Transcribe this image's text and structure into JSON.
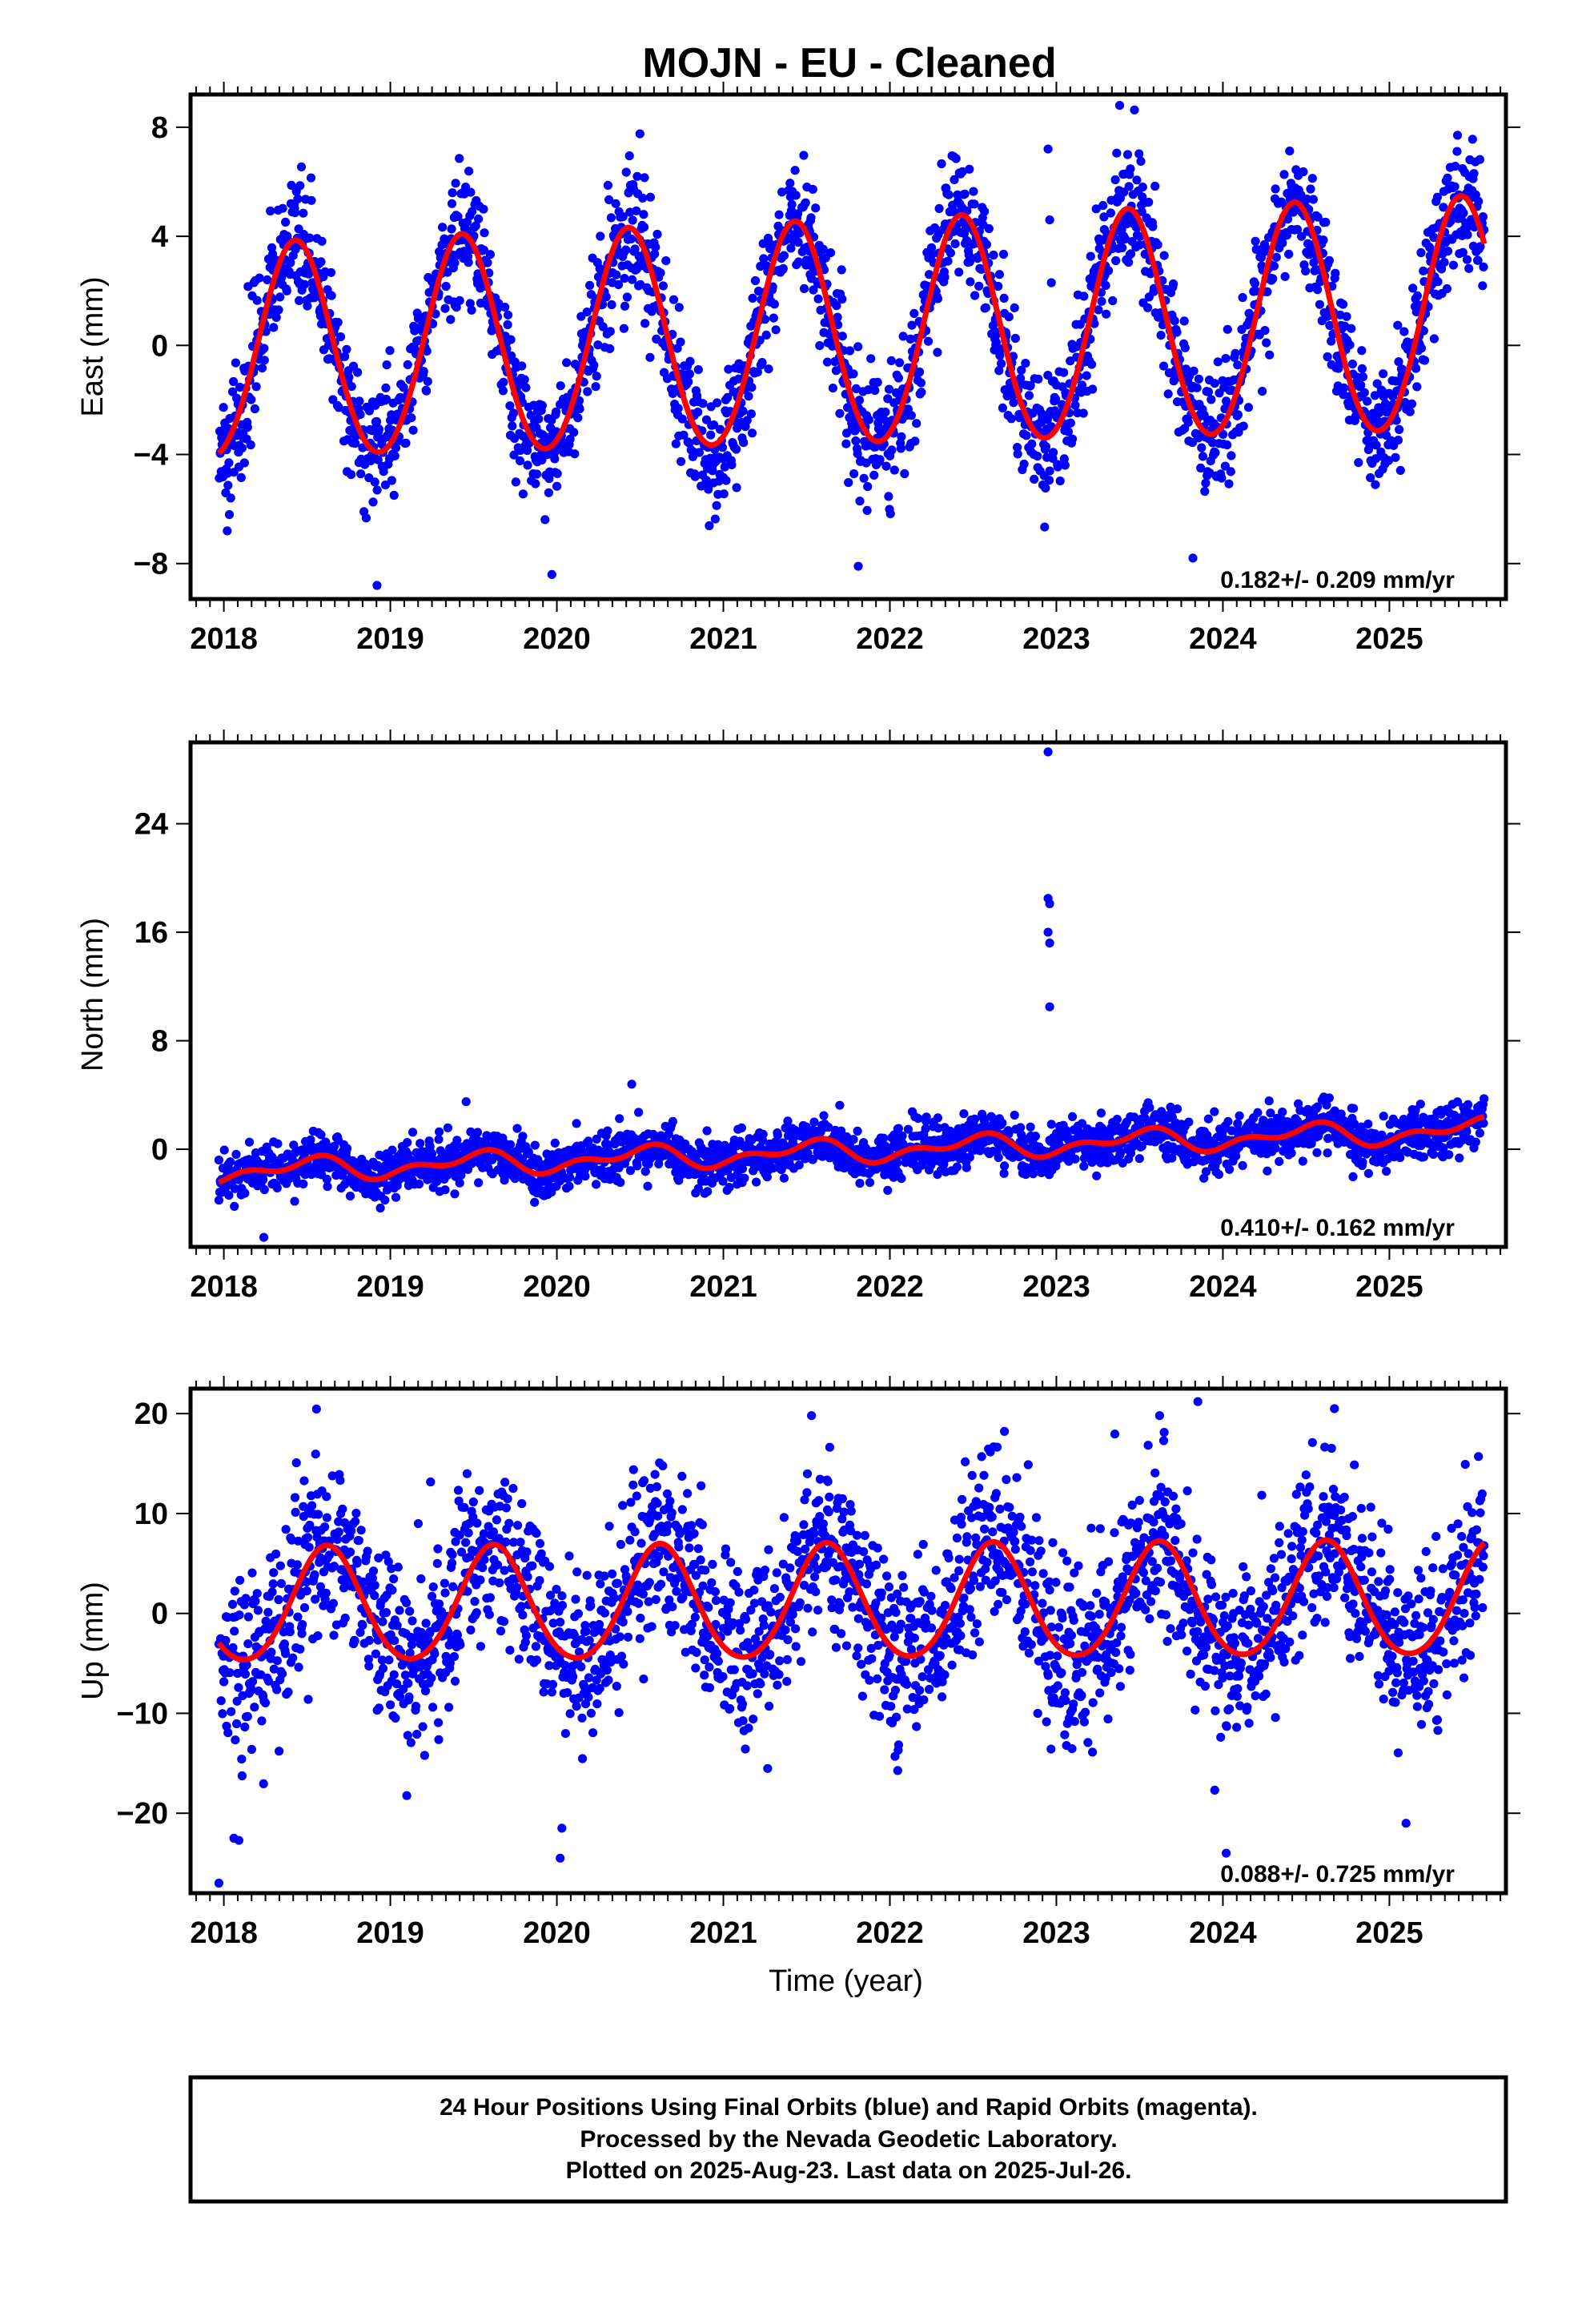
{
  "chart_data": {
    "title": "MOJN  - EU - Cleaned",
    "colors": {
      "points": "#0000ff",
      "model": "#ff0000",
      "frame": "#000000"
    },
    "footer_lines": [
      "24 Hour Positions Using Final Orbits (blue) and Rapid Orbits (magenta).",
      "Processed by the Nevada Geodetic Laboratory.",
      "Plotted on 2025-Aug-23. Last data on 2025-Jul-26."
    ],
    "panels": [
      {
        "type": "scatter",
        "component": "east",
        "ylabel": "East (mm)",
        "xlabel": "",
        "xlim": [
          2017.8,
          2025.7
        ],
        "ylim": [
          -9.3,
          9.2
        ],
        "yticks": [
          8,
          4,
          0,
          -4,
          -8
        ],
        "ytick_labels": [
          "8",
          "4",
          "0",
          "−4",
          "−8"
        ],
        "xticks": [
          2018,
          2019,
          2020,
          2021,
          2022,
          2023,
          2024,
          2025
        ],
        "xtick_labels": [
          "2018",
          "2019",
          "2020",
          "2021",
          "2022",
          "2023",
          "2024",
          "2025"
        ],
        "rate_text": "0.182+/- 0.209 mm/yr",
        "data_range": [
          2017.97,
          2025.57
        ],
        "model": {
          "offset": 0.35,
          "trend": 0.182,
          "ref_year": 2021.8,
          "annual_amp": 3.9,
          "annual_peak": 2018.43,
          "amp_trend": 0.05,
          "semi_amp": 0.2,
          "semi_peak": 2018.43
        },
        "scatter_sd": 1.15,
        "outliers": [
          {
            "x": 2022.95,
            "y": 7.2
          },
          {
            "x": 2022.96,
            "y": 4.6
          },
          {
            "x": 2022.97,
            "y": 2.3
          },
          {
            "x": 2023.38,
            "y": 8.8
          },
          {
            "x": 2018.92,
            "y": -8.8
          },
          {
            "x": 2019.97,
            "y": -8.4
          },
          {
            "x": 2021.81,
            "y": -8.1
          },
          {
            "x": 2023.82,
            "y": -7.8
          },
          {
            "x": 2018.02,
            "y": -6.8
          }
        ]
      },
      {
        "type": "scatter",
        "component": "north",
        "ylabel": "North (mm)",
        "xlabel": "",
        "xlim": [
          2017.8,
          2025.7
        ],
        "ylim": [
          -7.2,
          30.0
        ],
        "yticks": [
          24,
          16,
          8,
          0
        ],
        "ytick_labels": [
          "24",
          "16",
          "8",
          "0"
        ],
        "xticks": [
          2018,
          2019,
          2020,
          2021,
          2022,
          2023,
          2024,
          2025
        ],
        "xtick_labels": [
          "2018",
          "2019",
          "2020",
          "2021",
          "2022",
          "2023",
          "2024",
          "2025"
        ],
        "rate_text": "0.410+/- 0.162 mm/yr",
        "data_range": [
          2017.97,
          2025.57
        ],
        "model": {
          "offset": -0.1,
          "trend": 0.41,
          "ref_year": 2021.8,
          "annual_amp": 0.65,
          "annual_peak": 2018.5,
          "amp_trend": 0.0,
          "semi_amp": 0.45,
          "semi_peak": 2018.62
        },
        "scatter_sd": 0.95,
        "outliers": [
          {
            "x": 2022.95,
            "y": 29.3
          },
          {
            "x": 2022.95,
            "y": 18.5
          },
          {
            "x": 2022.96,
            "y": 18.1
          },
          {
            "x": 2022.95,
            "y": 16.0
          },
          {
            "x": 2022.96,
            "y": 15.2
          },
          {
            "x": 2022.96,
            "y": 10.5
          },
          {
            "x": 2020.45,
            "y": 4.8
          },
          {
            "x": 2017.97,
            "y": -0.8
          },
          {
            "x": 2018.24,
            "y": -6.5
          }
        ]
      },
      {
        "type": "scatter",
        "component": "up",
        "ylabel": "Up (mm)",
        "xlabel": "Time (year)",
        "xlim": [
          2017.8,
          2025.7
        ],
        "ylim": [
          -28.0,
          22.5
        ],
        "yticks": [
          20,
          10,
          0,
          -10,
          -20
        ],
        "ytick_labels": [
          "20",
          "10",
          "0",
          "−10",
          "−20"
        ],
        "xticks": [
          2018,
          2019,
          2020,
          2021,
          2022,
          2023,
          2024,
          2025
        ],
        "xtick_labels": [
          "2018",
          "2019",
          "2020",
          "2021",
          "2022",
          "2023",
          "2024",
          "2025"
        ],
        "rate_text": "0.088+/- 0.725 mm/yr",
        "data_range": [
          2017.97,
          2025.57
        ],
        "model": {
          "offset": 0.9,
          "trend": 0.088,
          "ref_year": 2021.8,
          "annual_amp": 5.7,
          "annual_peak": 2018.62,
          "amp_trend": 0.0,
          "semi_amp": 0.5,
          "semi_peak": 2018.62
        },
        "scatter_sd": 4.4,
        "outliers": [
          {
            "x": 2017.97,
            "y": -27.0
          },
          {
            "x": 2020.02,
            "y": -24.5
          },
          {
            "x": 2020.03,
            "y": -21.5
          },
          {
            "x": 2023.85,
            "y": 21.2
          },
          {
            "x": 2024.02,
            "y": -24.0
          },
          {
            "x": 2025.1,
            "y": -21.0
          },
          {
            "x": 2024.67,
            "y": 20.5
          },
          {
            "x": 2023.62,
            "y": 19.8
          },
          {
            "x": 2018.06,
            "y": -22.5
          }
        ]
      }
    ]
  }
}
